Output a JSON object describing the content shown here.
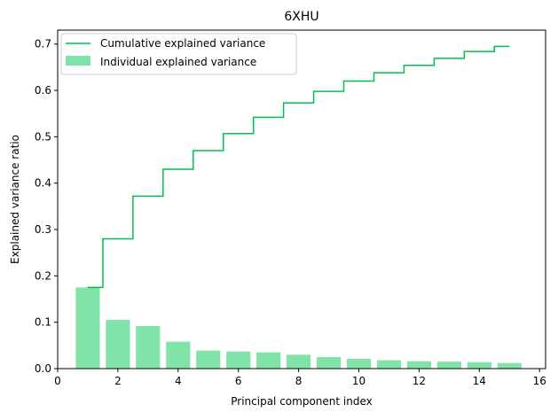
{
  "chart_data": {
    "type": "bar",
    "title": "6XHU",
    "xlabel": "Principal component index",
    "ylabel": "Explained variance ratio",
    "xlim": [
      0,
      16.2
    ],
    "ylim": [
      0,
      0.73
    ],
    "xticks": [
      0,
      2,
      4,
      6,
      8,
      10,
      12,
      14,
      16
    ],
    "yticks": [
      0.0,
      0.1,
      0.2,
      0.3,
      0.4,
      0.5,
      0.6,
      0.7
    ],
    "xtick_labels": [
      "0",
      "2",
      "4",
      "6",
      "8",
      "10",
      "12",
      "14",
      "16"
    ],
    "ytick_labels": [
      "0.0",
      "0.1",
      "0.2",
      "0.3",
      "0.4",
      "0.5",
      "0.6",
      "0.7"
    ],
    "grid": false,
    "legend_position": "top-left",
    "x": [
      1,
      2,
      3,
      4,
      5,
      6,
      7,
      8,
      9,
      10,
      11,
      12,
      13,
      14,
      15
    ],
    "series": [
      {
        "name": "Individual explained variance",
        "type": "bar",
        "color": "#82e3a8",
        "values": [
          0.175,
          0.105,
          0.092,
          0.058,
          0.039,
          0.037,
          0.035,
          0.03,
          0.025,
          0.021,
          0.018,
          0.016,
          0.015,
          0.014,
          0.012
        ]
      },
      {
        "name": "Cumulative explained variance",
        "type": "step",
        "color": "#00c050",
        "values": [
          0.175,
          0.28,
          0.372,
          0.43,
          0.47,
          0.507,
          0.542,
          0.573,
          0.598,
          0.62,
          0.638,
          0.654,
          0.669,
          0.684,
          0.695
        ]
      }
    ]
  }
}
